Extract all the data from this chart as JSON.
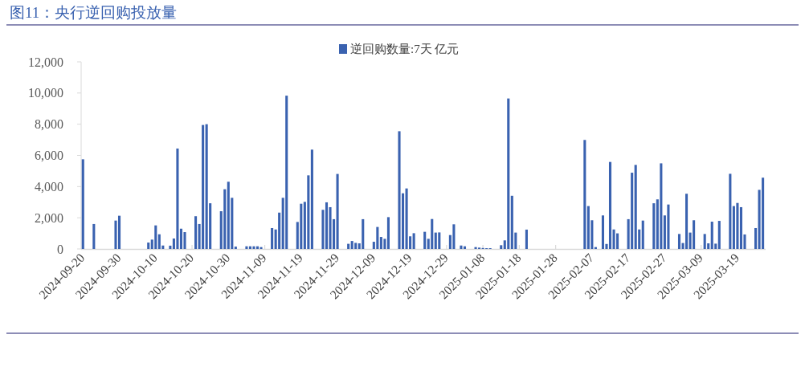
{
  "chart_data": {
    "type": "bar",
    "title": "图11：央行逆回购投放量",
    "legend": "top",
    "x": [
      "2024-09-20",
      "2024-09-23",
      "2024-09-29",
      "2024-09-30",
      "2024-10-08",
      "2024-10-09",
      "2024-10-10",
      "2024-10-11",
      "2024-10-12",
      "2024-10-14",
      "2024-10-15",
      "2024-10-16",
      "2024-10-17",
      "2024-10-18",
      "2024-10-21",
      "2024-10-22",
      "2024-10-23",
      "2024-10-24",
      "2024-10-25",
      "2024-10-28",
      "2024-10-29",
      "2024-10-30",
      "2024-10-31",
      "2024-11-01",
      "2024-11-04",
      "2024-11-05",
      "2024-11-06",
      "2024-11-07",
      "2024-11-08",
      "2024-11-11",
      "2024-11-12",
      "2024-11-13",
      "2024-11-14",
      "2024-11-15",
      "2024-11-18",
      "2024-11-19",
      "2024-11-20",
      "2024-11-21",
      "2024-11-22",
      "2024-11-25",
      "2024-11-26",
      "2024-11-27",
      "2024-11-28",
      "2024-11-29",
      "2024-12-02",
      "2024-12-03",
      "2024-12-04",
      "2024-12-05",
      "2024-12-06",
      "2024-12-09",
      "2024-12-10",
      "2024-12-11",
      "2024-12-12",
      "2024-12-13",
      "2024-12-16",
      "2024-12-17",
      "2024-12-18",
      "2024-12-19",
      "2024-12-20",
      "2024-12-23",
      "2024-12-24",
      "2024-12-25",
      "2024-12-26",
      "2024-12-27",
      "2024-12-30",
      "2024-12-31",
      "2025-01-02",
      "2025-01-03",
      "2025-01-06",
      "2025-01-07",
      "2025-01-08",
      "2025-01-09",
      "2025-01-10",
      "2025-01-13",
      "2025-01-14",
      "2025-01-15",
      "2025-01-16",
      "2025-01-17",
      "2025-01-20",
      "2025-02-05",
      "2025-02-06",
      "2025-02-07",
      "2025-02-08",
      "2025-02-10",
      "2025-02-11",
      "2025-02-12",
      "2025-02-13",
      "2025-02-14",
      "2025-02-17",
      "2025-02-18",
      "2025-02-19",
      "2025-02-20",
      "2025-02-21",
      "2025-02-24",
      "2025-02-25",
      "2025-02-26",
      "2025-02-27",
      "2025-02-28",
      "2025-03-03",
      "2025-03-04",
      "2025-03-05",
      "2025-03-06",
      "2025-03-07",
      "2025-03-10",
      "2025-03-11",
      "2025-03-12",
      "2025-03-13",
      "2025-03-14",
      "2025-03-17",
      "2025-03-18",
      "2025-03-19",
      "2025-03-20",
      "2025-03-21",
      "2025-03-24",
      "2025-03-25",
      "2025-03-26"
    ],
    "series": [
      {
        "name": "逆回购数量:7天 亿元",
        "color": "#3a62b0",
        "values": [
          5750,
          1600,
          1820,
          2130,
          410,
          600,
          1510,
          940,
          220,
          210,
          670,
          6440,
          1300,
          1080,
          2100,
          1600,
          7950,
          8000,
          2930,
          2420,
          3830,
          4310,
          3280,
          150,
          170,
          170,
          170,
          170,
          120,
          1340,
          1250,
          2330,
          3280,
          9830,
          1730,
          2900,
          3020,
          4720,
          6370,
          2510,
          2990,
          2680,
          1910,
          4810,
          330,
          510,
          390,
          360,
          1910,
          460,
          1410,
          770,
          650,
          2040,
          7550,
          3570,
          3880,
          810,
          1010,
          1100,
          650,
          1920,
          1050,
          1060,
          890,
          1580,
          220,
          170,
          120,
          85,
          60,
          50,
          50,
          240,
          550,
          9650,
          3410,
          1050,
          1240,
          6990,
          2750,
          1840,
          120,
          2150,
          320,
          5580,
          1250,
          1000,
          1910,
          4890,
          5390,
          1250,
          1820,
          2930,
          3180,
          5490,
          2150,
          2850,
          960,
          380,
          3540,
          1050,
          1840,
          960,
          360,
          1750,
          340,
          1800,
          4820,
          2750,
          2950,
          2680,
          930,
          1340,
          3790,
          4570
        ]
      }
    ],
    "xlim": [
      "2024-09-19T12:00",
      "2025-03-26T18:00"
    ],
    "xticks": [
      "2024-09-20",
      "2024-09-30",
      "2024-10-10",
      "2024-10-20",
      "2024-10-30",
      "2024-11-09",
      "2024-11-19",
      "2024-11-29",
      "2024-12-09",
      "2024-12-19",
      "2024-12-29",
      "2025-01-08",
      "2025-01-18",
      "2025-01-28",
      "2025-02-07",
      "2025-02-17",
      "2025-02-27",
      "2025-03-09",
      "2025-03-19"
    ],
    "ylim": [
      0,
      12000
    ],
    "yticks": [
      0,
      {
        "value": 2000,
        "label": "2,000"
      },
      {
        "value": 4000,
        "label": "4,000"
      },
      {
        "value": 6000,
        "label": "6,000"
      },
      {
        "value": 8000,
        "label": "8,000"
      },
      {
        "value": 10000,
        "label": "10,000"
      },
      {
        "value": 12000,
        "label": "12,000"
      }
    ]
  }
}
